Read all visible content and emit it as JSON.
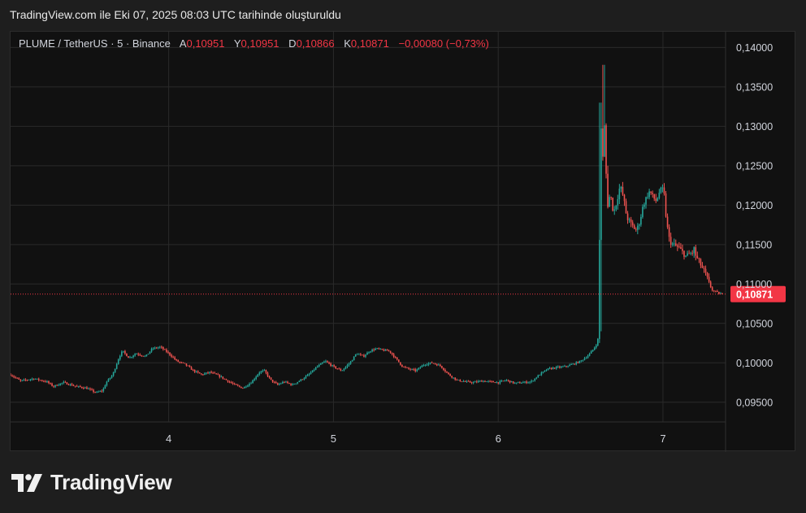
{
  "header": {
    "title": "TradingView.com ile Eki 07, 2025 08:03 UTC tarihinde oluşturuldu"
  },
  "legend": {
    "symbol": "PLUME / TetherUS · 5 · Binance",
    "open_label": "A",
    "open": "0,10951",
    "high_label": "Y",
    "high": "0,10951",
    "low_label": "D",
    "low": "0,10866",
    "close_label": "K",
    "close": "0,10871",
    "change": "−0,00080 (−0,73%)"
  },
  "brand": {
    "logo_text": "TradingView"
  },
  "colors": {
    "up": "#26a69a",
    "down": "#ef5350",
    "last_price": "#f23645",
    "background": "#111111",
    "grid": "#2a2a2a"
  },
  "chart_data": {
    "type": "candlestick",
    "series_name": "PLUME / TetherUS",
    "interval": "5",
    "exchange": "Binance",
    "x_range": [
      3.04,
      7.38
    ],
    "ylim": [
      0.0925,
      0.142
    ],
    "y_ticks": [
      "0,09500",
      "0,10000",
      "0,10500",
      "0,11000",
      "0,11500",
      "0,12000",
      "0,12500",
      "0,13000",
      "0,13500",
      "0,14000"
    ],
    "y_tick_values": [
      0.095,
      0.1,
      0.105,
      0.11,
      0.115,
      0.12,
      0.125,
      0.13,
      0.135,
      0.14
    ],
    "x_ticks": [
      "4",
      "5",
      "6",
      "7"
    ],
    "x_tick_values": [
      4,
      5,
      6,
      7
    ],
    "last_price": 0.10871,
    "last_price_label": "0,10871",
    "grid": true,
    "price_path": [
      [
        3.04,
        0.0985
      ],
      [
        3.1,
        0.0977
      ],
      [
        3.18,
        0.098
      ],
      [
        3.26,
        0.0976
      ],
      [
        3.3,
        0.097
      ],
      [
        3.36,
        0.0975
      ],
      [
        3.44,
        0.097
      ],
      [
        3.5,
        0.0968
      ],
      [
        3.56,
        0.0962
      ],
      [
        3.6,
        0.0965
      ],
      [
        3.62,
        0.0975
      ],
      [
        3.66,
        0.0985
      ],
      [
        3.7,
        0.1008
      ],
      [
        3.72,
        0.1015
      ],
      [
        3.76,
        0.1006
      ],
      [
        3.8,
        0.1012
      ],
      [
        3.86,
        0.1008
      ],
      [
        3.9,
        0.1018
      ],
      [
        3.95,
        0.102
      ],
      [
        4.0,
        0.1012
      ],
      [
        4.05,
        0.1002
      ],
      [
        4.1,
        0.0998
      ],
      [
        4.15,
        0.099
      ],
      [
        4.2,
        0.0985
      ],
      [
        4.25,
        0.0988
      ],
      [
        4.3,
        0.0984
      ],
      [
        4.35,
        0.0978
      ],
      [
        4.4,
        0.0972
      ],
      [
        4.45,
        0.0968
      ],
      [
        4.5,
        0.0975
      ],
      [
        4.55,
        0.0988
      ],
      [
        4.58,
        0.099
      ],
      [
        4.62,
        0.0978
      ],
      [
        4.66,
        0.0972
      ],
      [
        4.7,
        0.0976
      ],
      [
        4.75,
        0.0972
      ],
      [
        4.8,
        0.0978
      ],
      [
        4.85,
        0.0985
      ],
      [
        4.9,
        0.0995
      ],
      [
        4.95,
        0.1002
      ],
      [
        5.0,
        0.0995
      ],
      [
        5.05,
        0.099
      ],
      [
        5.1,
        0.1
      ],
      [
        5.14,
        0.1012
      ],
      [
        5.18,
        0.1008
      ],
      [
        5.22,
        0.1015
      ],
      [
        5.26,
        0.1018
      ],
      [
        5.3,
        0.1016
      ],
      [
        5.34,
        0.1015
      ],
      [
        5.38,
        0.1005
      ],
      [
        5.42,
        0.0995
      ],
      [
        5.46,
        0.0992
      ],
      [
        5.5,
        0.099
      ],
      [
        5.55,
        0.0998
      ],
      [
        5.6,
        0.1
      ],
      [
        5.65,
        0.0996
      ],
      [
        5.7,
        0.0985
      ],
      [
        5.75,
        0.0978
      ],
      [
        5.8,
        0.0976
      ],
      [
        5.85,
        0.0975
      ],
      [
        5.9,
        0.0977
      ],
      [
        5.95,
        0.0976
      ],
      [
        6.0,
        0.0975
      ],
      [
        6.05,
        0.0978
      ],
      [
        6.1,
        0.0974
      ],
      [
        6.15,
        0.0975
      ],
      [
        6.2,
        0.0976
      ],
      [
        6.25,
        0.0985
      ],
      [
        6.3,
        0.0992
      ],
      [
        6.35,
        0.0994
      ],
      [
        6.4,
        0.0995
      ],
      [
        6.45,
        0.0998
      ],
      [
        6.5,
        0.1002
      ],
      [
        6.55,
        0.101
      ],
      [
        6.58,
        0.1018
      ],
      [
        6.6,
        0.1025
      ],
      [
        6.61,
        0.1035
      ],
      [
        6.615,
        0.116
      ],
      [
        6.625,
        0.13
      ],
      [
        6.635,
        0.126
      ],
      [
        6.645,
        0.13
      ],
      [
        6.655,
        0.124
      ],
      [
        6.665,
        0.12
      ],
      [
        6.68,
        0.1215
      ],
      [
        6.7,
        0.119
      ],
      [
        6.72,
        0.1205
      ],
      [
        6.74,
        0.1225
      ],
      [
        6.76,
        0.121
      ],
      [
        6.78,
        0.1185
      ],
      [
        6.8,
        0.1178
      ],
      [
        6.82,
        0.1172
      ],
      [
        6.84,
        0.1168
      ],
      [
        6.86,
        0.118
      ],
      [
        6.88,
        0.12
      ],
      [
        6.9,
        0.121
      ],
      [
        6.92,
        0.1218
      ],
      [
        6.94,
        0.121
      ],
      [
        6.96,
        0.1205
      ],
      [
        6.98,
        0.1218
      ],
      [
        7.0,
        0.122
      ],
      [
        7.01,
        0.121
      ],
      [
        7.02,
        0.118
      ],
      [
        7.04,
        0.1155
      ],
      [
        7.06,
        0.115
      ],
      [
        7.08,
        0.1148
      ],
      [
        7.1,
        0.1145
      ],
      [
        7.12,
        0.114
      ],
      [
        7.14,
        0.1135
      ],
      [
        7.16,
        0.1138
      ],
      [
        7.18,
        0.114
      ],
      [
        7.19,
        0.1145
      ],
      [
        7.2,
        0.1135
      ],
      [
        7.22,
        0.1128
      ],
      [
        7.24,
        0.112
      ],
      [
        7.26,
        0.1112
      ],
      [
        7.28,
        0.11
      ],
      [
        7.3,
        0.1092
      ],
      [
        7.32,
        0.109
      ],
      [
        7.34,
        0.1088
      ],
      [
        7.36,
        0.1087
      ]
    ],
    "spike_highs": [
      [
        6.62,
        0.133
      ],
      [
        6.64,
        0.1378
      ],
      [
        6.66,
        0.125
      ]
    ]
  }
}
